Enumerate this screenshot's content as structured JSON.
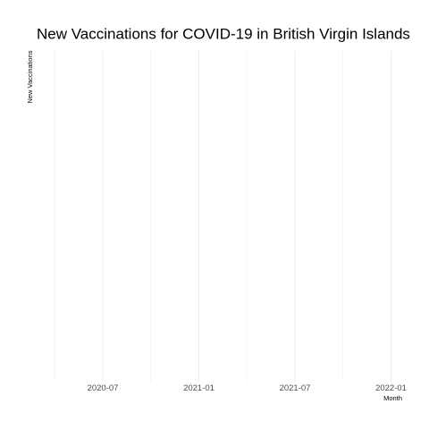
{
  "chart_data": {
    "type": "line",
    "title": "New Vaccinations for COVID-19 in British Virgin Islands",
    "xlabel": "Month",
    "ylabel": "New Vaccinations",
    "x_ticks": [
      "2020-07",
      "2021-01",
      "2021-07",
      "2022-01"
    ],
    "x_minor_ticks": [
      "2020-04",
      "2020-10",
      "2021-04",
      "2021-10"
    ],
    "xlim": [
      "2020-04",
      "2022-01"
    ],
    "series": [],
    "grid": true,
    "legend": "none",
    "colors": {
      "grid": "#ebebeb",
      "background": "#ffffff"
    }
  }
}
